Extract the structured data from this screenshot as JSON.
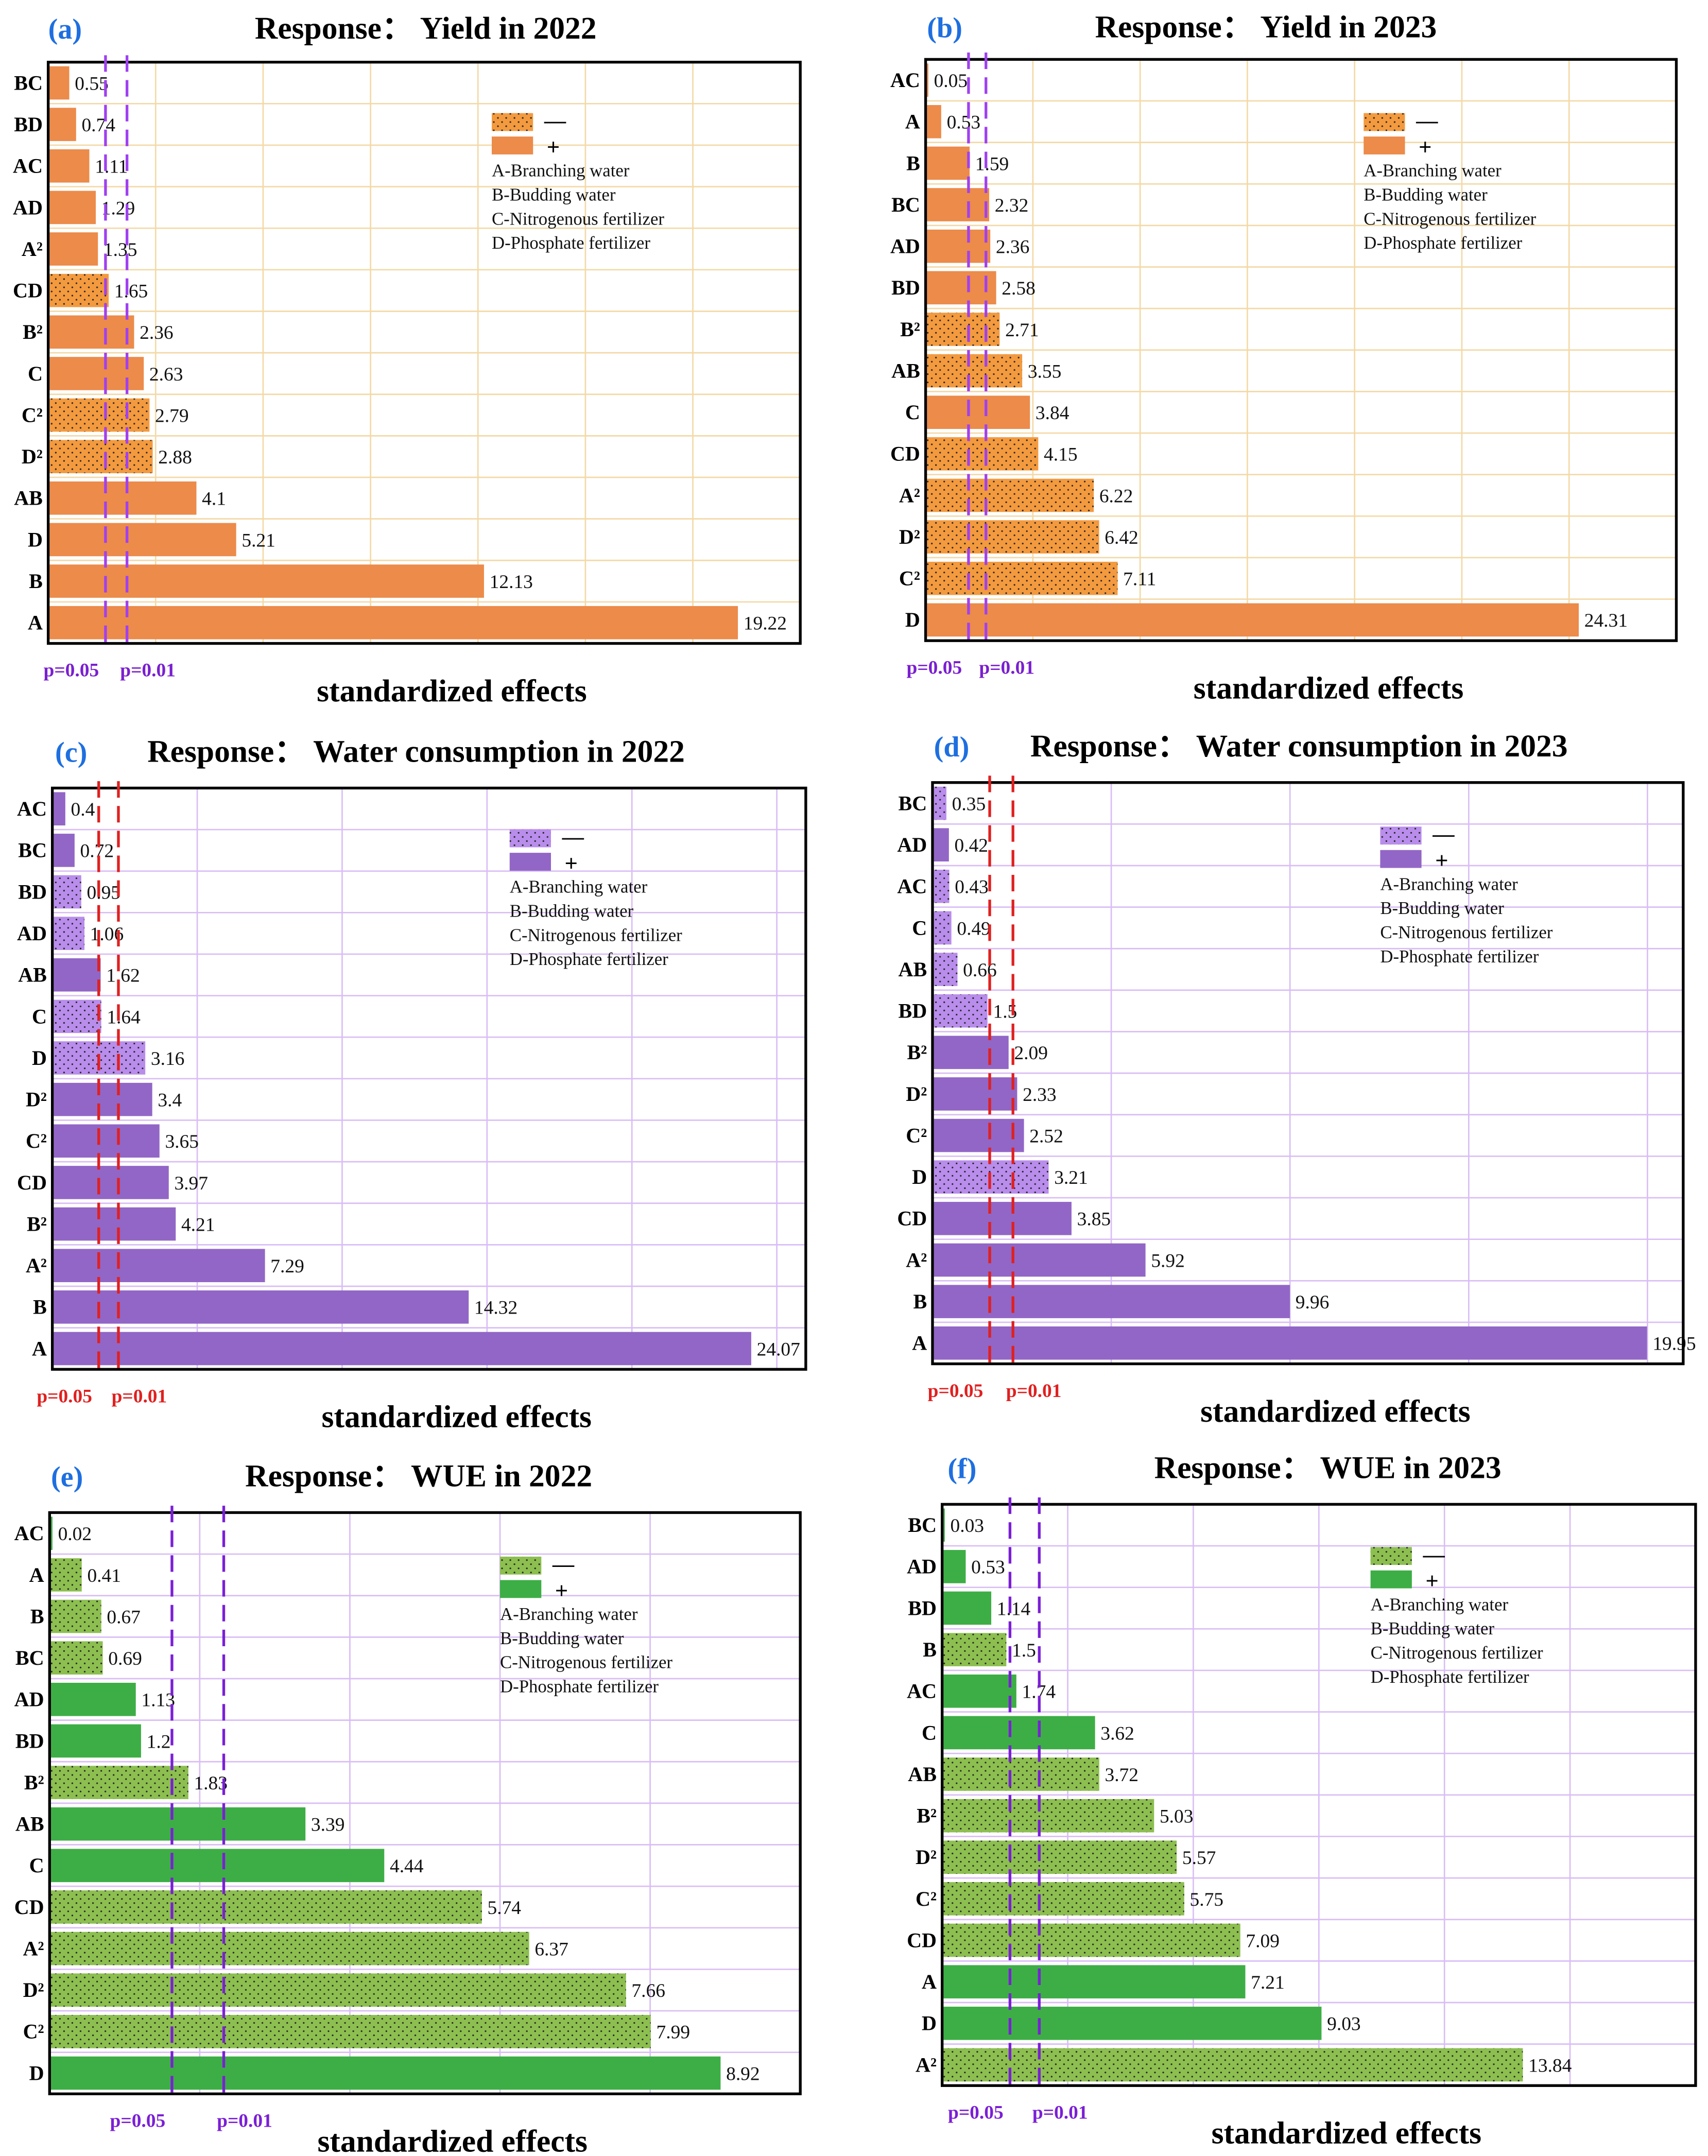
{
  "legend": {
    "negative": "—",
    "positive": "+",
    "factors": [
      "A-Branching water",
      "B-Budding water",
      "C-Nitrogenous fertilizer",
      "D-Phosphate fertilizer"
    ]
  },
  "xlabel": "standardized effects",
  "p_labels": [
    "p=0.05",
    "p=0.01"
  ],
  "chart_data": [
    {
      "type": "bar",
      "orientation": "horizontal",
      "panel": "(a)",
      "title": "Response：  Yield in 2022",
      "xlim": [
        0,
        21
      ],
      "grid_step": 3,
      "p_lines": [
        1.6,
        2.2
      ],
      "colors": {
        "positive": "#EC8B4A",
        "negative": "#F39A3F",
        "grid": "#F3D9A6",
        "pline": "#A040F0",
        "plabel": "#7A1FD0"
      },
      "categories": [
        "BC",
        "BD",
        "AC",
        "AD",
        "A²",
        "CD",
        "B²",
        "C",
        "C²",
        "D²",
        "AB",
        "D",
        "B",
        "A"
      ],
      "values": [
        0.55,
        0.74,
        1.11,
        1.29,
        1.35,
        1.65,
        2.36,
        2.63,
        2.79,
        2.88,
        4.1,
        5.21,
        12.13,
        19.22
      ],
      "labels": [
        "0.55",
        "0.74",
        "1.11",
        "1.29",
        "1.35",
        "1.65",
        "2.36",
        "2.63",
        "2.79",
        "2.88",
        "4.1",
        "5.21",
        "12.13",
        "19.22"
      ],
      "signs": [
        "+",
        "+",
        "+",
        "+",
        "+",
        "-",
        "+",
        "+",
        "-",
        "-",
        "+",
        "+",
        "+",
        "+"
      ]
    },
    {
      "type": "bar",
      "orientation": "horizontal",
      "panel": "(b)",
      "title": "Response：  Yield in 2023",
      "xlim": [
        0,
        28
      ],
      "grid_step": 4,
      "p_lines": [
        1.6,
        2.25
      ],
      "colors": {
        "positive": "#EC8B4A",
        "negative": "#F39A3F",
        "grid": "#F3D9A6",
        "pline": "#A040F0",
        "plabel": "#7A1FD0"
      },
      "categories": [
        "AC",
        "A",
        "B",
        "BC",
        "AD",
        "BD",
        "B²",
        "AB",
        "C",
        "CD",
        "A²",
        "D²",
        "C²",
        "D"
      ],
      "values": [
        0.05,
        0.53,
        1.59,
        2.32,
        2.36,
        2.58,
        2.71,
        3.55,
        3.84,
        4.15,
        6.22,
        6.42,
        7.11,
        24.31
      ],
      "labels": [
        "0.05",
        "0.53",
        "1.59",
        "2.32",
        "2.36",
        "2.58",
        "2.71",
        "3.55",
        "3.84",
        "4.15",
        "6.22",
        "6.42",
        "7.11",
        "24.31"
      ],
      "signs": [
        "+",
        "+",
        "+",
        "+",
        "+",
        "+",
        "-",
        "-",
        "+",
        "-",
        "-",
        "-",
        "-",
        "+"
      ]
    },
    {
      "type": "bar",
      "orientation": "horizontal",
      "panel": "(c)",
      "title": "Response：  Water consumption in 2022",
      "xlim": [
        0,
        26
      ],
      "grid_step": 5,
      "p_lines": [
        1.6,
        2.28
      ],
      "colors": {
        "positive": "#9266C6",
        "negative": "#B98DEB",
        "grid": "#D9BDF5",
        "pline": "#E02020",
        "plabel": "#E02020"
      },
      "categories": [
        "AC",
        "BC",
        "BD",
        "AD",
        "AB",
        "C",
        "D",
        "D²",
        "C²",
        "CD",
        "B²",
        "A²",
        "B",
        "A"
      ],
      "values": [
        0.4,
        0.72,
        0.95,
        1.06,
        1.62,
        1.64,
        3.16,
        3.4,
        3.65,
        3.97,
        4.21,
        7.29,
        14.32,
        24.07
      ],
      "labels": [
        "0.4",
        "0.72",
        "0.95",
        "1.06",
        "1.62",
        "1.64",
        "3.16",
        "3.4",
        "3.65",
        "3.97",
        "4.21",
        "7.29",
        "14.32",
        "24.07"
      ],
      "signs": [
        "+",
        "+",
        "-",
        "-",
        "+",
        "-",
        "-",
        "+",
        "+",
        "+",
        "+",
        "+",
        "+",
        "+"
      ]
    },
    {
      "type": "bar",
      "orientation": "horizontal",
      "panel": "(d)",
      "title": "Response：  Water consumption in 2023",
      "xlim": [
        0,
        21
      ],
      "grid_step": 5,
      "p_lines": [
        1.6,
        2.25
      ],
      "colors": {
        "positive": "#9266C6",
        "negative": "#B98DEB",
        "grid": "#D9BDF5",
        "pline": "#E02020",
        "plabel": "#E02020"
      },
      "categories": [
        "BC",
        "AD",
        "AC",
        "C",
        "AB",
        "BD",
        "B²",
        "D²",
        "C²",
        "D",
        "CD",
        "A²",
        "B",
        "A"
      ],
      "values": [
        0.35,
        0.42,
        0.43,
        0.49,
        0.66,
        1.5,
        2.09,
        2.33,
        2.52,
        3.21,
        3.85,
        5.92,
        9.96,
        19.95
      ],
      "labels": [
        "0.35",
        "0.42",
        "0.43",
        "0.49",
        "0.66",
        "1.5",
        "2.09",
        "2.33",
        "2.52",
        "3.21",
        "3.85",
        "5.92",
        "9.96",
        "19.95"
      ],
      "signs": [
        "-",
        "+",
        "-",
        "-",
        "-",
        "-",
        "+",
        "+",
        "+",
        "-",
        "+",
        "+",
        "+",
        "+"
      ]
    },
    {
      "type": "bar",
      "orientation": "horizontal",
      "panel": "(e)",
      "title": "Response：  WUE in 2022",
      "xlim": [
        0,
        10
      ],
      "grid_step": 2,
      "p_lines": [
        1.63,
        2.32
      ],
      "colors": {
        "positive": "#3DAE45",
        "negative": "#8CBF50",
        "grid": "#D9BDF5",
        "pline": "#7B1FD6",
        "plabel": "#7B1FD6"
      },
      "categories": [
        "AC",
        "A",
        "B",
        "BC",
        "AD",
        "BD",
        "B²",
        "AB",
        "C",
        "CD",
        "A²",
        "D²",
        "C²",
        "D"
      ],
      "values": [
        0.02,
        0.41,
        0.67,
        0.69,
        1.13,
        1.2,
        1.83,
        3.39,
        4.44,
        5.74,
        6.37,
        7.66,
        7.99,
        8.92
      ],
      "labels": [
        "0.02",
        "0.41",
        "0.67",
        "0.69",
        "1.13",
        "1.2",
        "1.83",
        "3.39",
        "4.44",
        "5.74",
        "6.37",
        "7.66",
        "7.99",
        "8.92"
      ],
      "signs": [
        "+",
        "-",
        "-",
        "-",
        "+",
        "+",
        "-",
        "+",
        "+",
        "-",
        "-",
        "-",
        "-",
        "+"
      ]
    },
    {
      "type": "bar",
      "orientation": "horizontal",
      "panel": "(f)",
      "title": "Response：  WUE in 2023",
      "xlim": [
        0,
        18
      ],
      "grid_step": 3,
      "p_lines": [
        1.62,
        2.32
      ],
      "colors": {
        "positive": "#3DAE45",
        "negative": "#8CBF50",
        "grid": "#D9BDF5",
        "pline": "#7B1FD6",
        "plabel": "#7B1FD6"
      },
      "categories": [
        "BC",
        "AD",
        "BD",
        "B",
        "AC",
        "C",
        "AB",
        "B²",
        "D²",
        "C²",
        "CD",
        "A",
        "D",
        "A²"
      ],
      "values": [
        0.03,
        0.53,
        1.14,
        1.5,
        1.74,
        3.62,
        3.72,
        5.03,
        5.57,
        5.75,
        7.09,
        7.21,
        9.03,
        13.84
      ],
      "labels": [
        "0.03",
        "0.53",
        "1.14",
        "1.5",
        "1.74",
        "3.62",
        "3.72",
        "5.03",
        "5.57",
        "5.75",
        "7.09",
        "7.21",
        "9.03",
        "13.84"
      ],
      "signs": [
        "+",
        "+",
        "+",
        "-",
        "+",
        "+",
        "-",
        "-",
        "-",
        "-",
        "-",
        "+",
        "+",
        "-"
      ]
    }
  ]
}
